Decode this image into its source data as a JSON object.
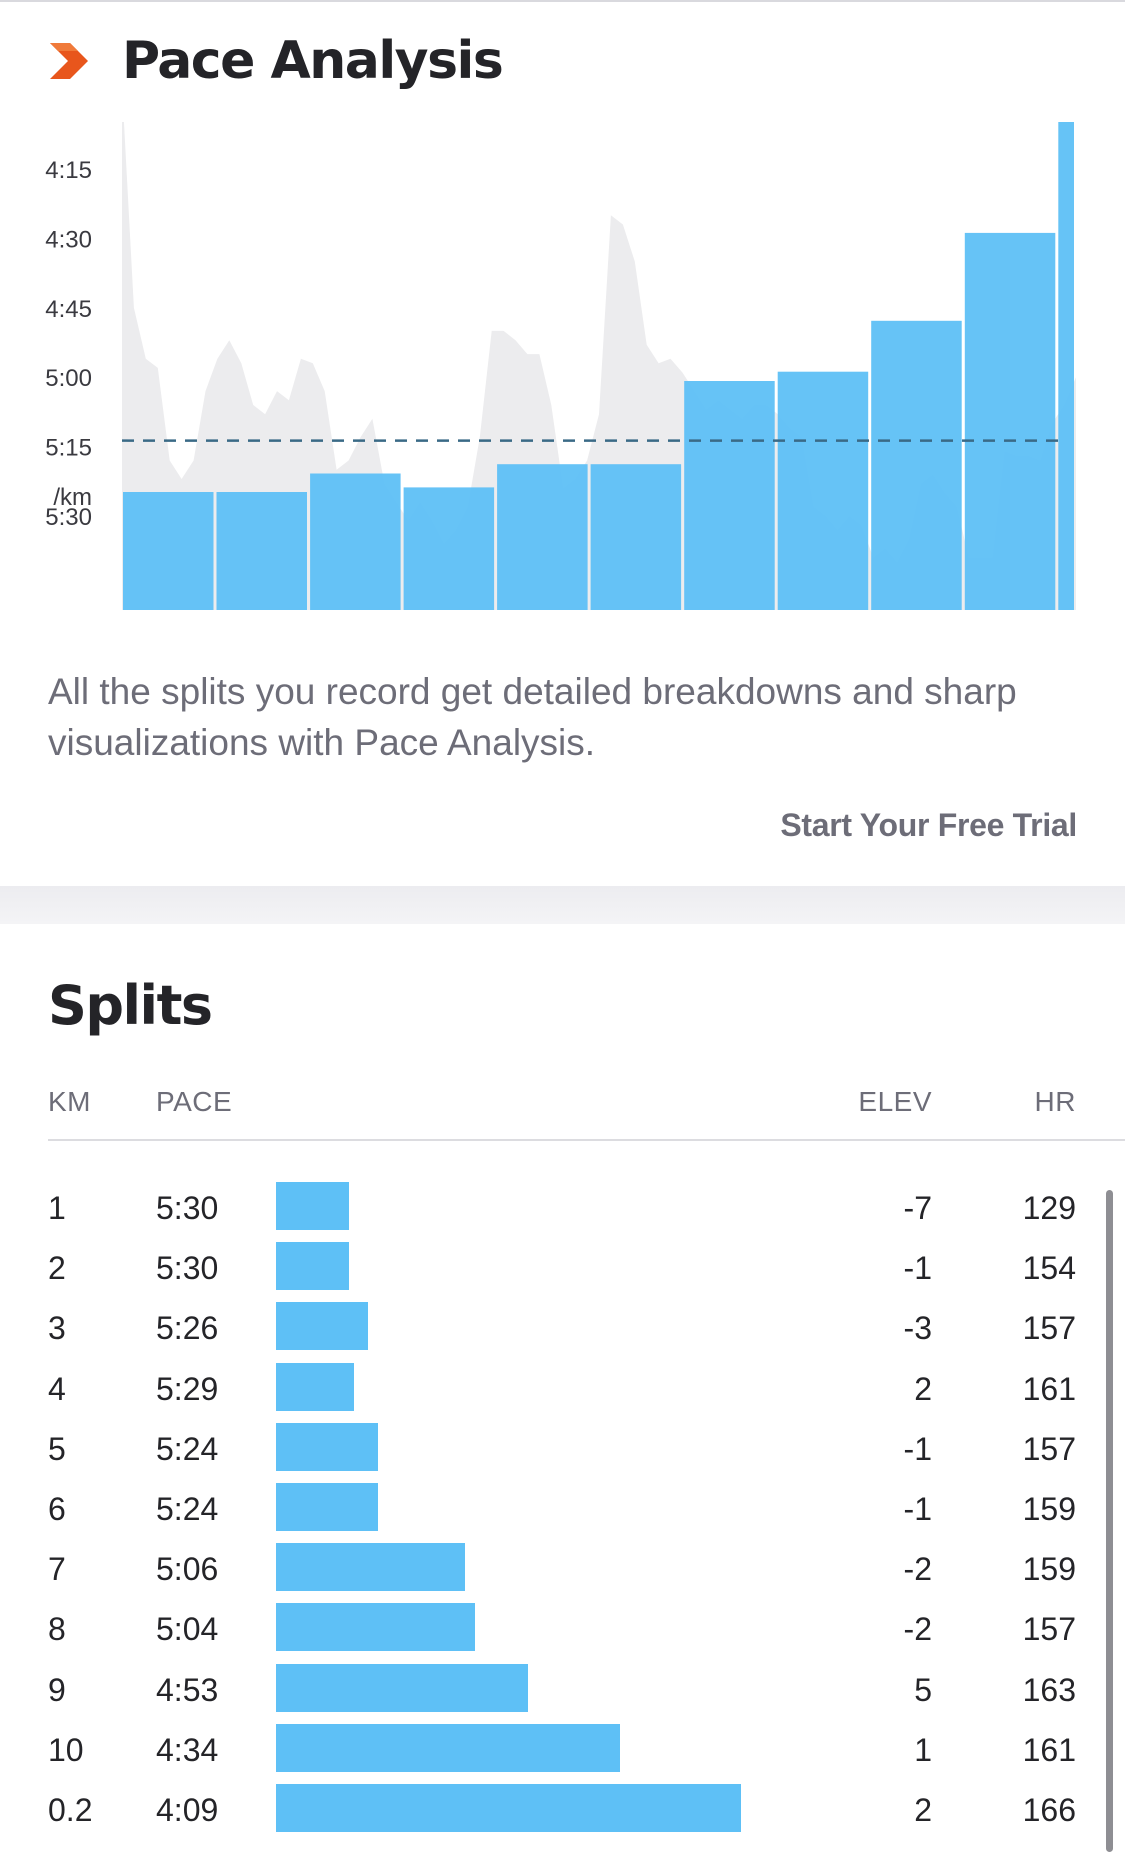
{
  "pace_analysis": {
    "title": "Pace Analysis",
    "description": "All the splits you record get detailed breakdowns and sharp visualizations with Pace Analysis.",
    "cta": "Start Your Free Trial",
    "brand_color": "#e8561c",
    "chevron_icon": "chevron-right-icon"
  },
  "chart_data": {
    "type": "bar",
    "y_tick_labels": [
      "4:15",
      "4:30",
      "4:45",
      "5:00",
      "5:15",
      "5:30"
    ],
    "y_unit": "/km",
    "y_axis_inverted": true,
    "ylim_seconds": [
      240,
      340
    ],
    "average_pace_seconds": 315,
    "average_line_style": "dashed",
    "categories": [
      "1",
      "2",
      "3",
      "4",
      "5",
      "6",
      "7",
      "8",
      "9",
      "10",
      "0.2"
    ],
    "bar_widths_km": [
      1,
      1,
      1,
      1,
      1,
      1,
      1,
      1,
      1,
      1,
      0.2
    ],
    "values_seconds": [
      330,
      330,
      326,
      329,
      324,
      324,
      306,
      304,
      293,
      274,
      249
    ],
    "bar_color": "#5ec0f6",
    "background_area_color": "#ececee",
    "background_area_label": "",
    "background_area_pace_seconds": [
      237,
      285,
      296,
      298,
      318,
      322,
      318,
      303,
      296,
      292,
      297,
      306,
      308,
      303,
      305,
      296,
      297,
      303,
      320,
      318,
      313,
      309,
      323,
      327,
      331,
      327,
      331,
      336,
      333,
      328,
      313,
      290,
      290,
      292,
      295,
      295,
      306,
      324,
      322,
      318,
      308,
      265,
      267,
      275,
      293,
      297,
      296,
      299,
      303,
      307,
      305,
      307,
      309,
      306,
      306,
      308,
      311,
      313,
      328,
      330,
      333,
      330,
      332,
      339,
      337,
      340,
      335,
      323,
      321,
      325,
      328,
      339,
      339,
      339,
      316,
      317,
      317,
      318,
      310,
      306,
      300
    ]
  },
  "splits": {
    "title": "Splits",
    "headers": {
      "km": "KM",
      "pace": "PACE",
      "elev": "ELEV",
      "hr": "HR"
    },
    "rows": [
      {
        "km": "1",
        "pace": "5:30",
        "pace_seconds": 330,
        "elev": "-7",
        "hr": "129"
      },
      {
        "km": "2",
        "pace": "5:30",
        "pace_seconds": 330,
        "elev": "-1",
        "hr": "154"
      },
      {
        "km": "3",
        "pace": "5:26",
        "pace_seconds": 326,
        "elev": "-3",
        "hr": "157"
      },
      {
        "km": "4",
        "pace": "5:29",
        "pace_seconds": 329,
        "elev": "2",
        "hr": "161"
      },
      {
        "km": "5",
        "pace": "5:24",
        "pace_seconds": 324,
        "elev": "-1",
        "hr": "157"
      },
      {
        "km": "6",
        "pace": "5:24",
        "pace_seconds": 324,
        "elev": "-1",
        "hr": "159"
      },
      {
        "km": "7",
        "pace": "5:06",
        "pace_seconds": 306,
        "elev": "-2",
        "hr": "159"
      },
      {
        "km": "8",
        "pace": "5:04",
        "pace_seconds": 304,
        "elev": "-2",
        "hr": "157"
      },
      {
        "km": "9",
        "pace": "4:53",
        "pace_seconds": 293,
        "elev": "5",
        "hr": "163"
      },
      {
        "km": "10",
        "pace": "4:34",
        "pace_seconds": 274,
        "elev": "1",
        "hr": "161"
      },
      {
        "km": "0.2",
        "pace": "4:09",
        "pace_seconds": 249,
        "elev": "2",
        "hr": "166"
      }
    ]
  }
}
